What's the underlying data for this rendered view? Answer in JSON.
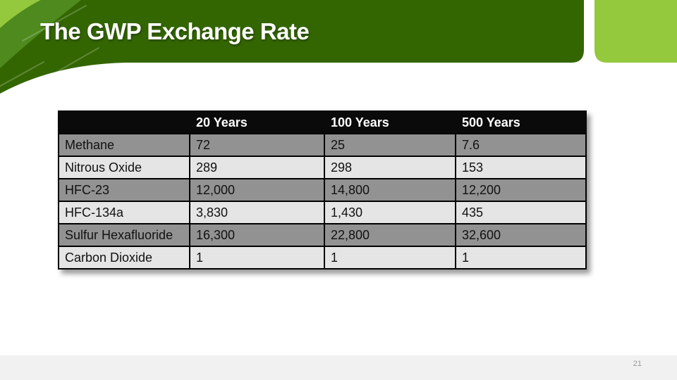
{
  "slide": {
    "title": "The GWP Exchange Rate",
    "page_number": "21"
  },
  "colors": {
    "dark_green": "#336600",
    "medium_green": "#4e8a1e",
    "light_green": "#94c93d",
    "streak": "#ffffff",
    "table_header_bg": "#0a0a0a",
    "row_dark": "#929292",
    "row_light": "#e5e5e5",
    "table_border": "#000000",
    "footer_band": "#f1f1f1",
    "page_number_text": "#9a9a9a"
  },
  "table": {
    "columns": [
      "",
      "20 Years",
      "100 Years",
      "500 Years"
    ],
    "rows": [
      {
        "label": "Methane",
        "values": [
          "72",
          "25",
          "7.6"
        ]
      },
      {
        "label": "Nitrous Oxide",
        "values": [
          "289",
          "298",
          "153"
        ]
      },
      {
        "label": "HFC-23",
        "values": [
          "12,000",
          "14,800",
          "12,200"
        ]
      },
      {
        "label": "HFC-134a",
        "values": [
          "3,830",
          "1,430",
          "435"
        ]
      },
      {
        "label": "Sulfur Hexafluoride",
        "values": [
          "16,300",
          "22,800",
          "32,600"
        ]
      },
      {
        "label": "Carbon Dioxide",
        "values": [
          "1",
          "1",
          "1"
        ]
      }
    ]
  }
}
